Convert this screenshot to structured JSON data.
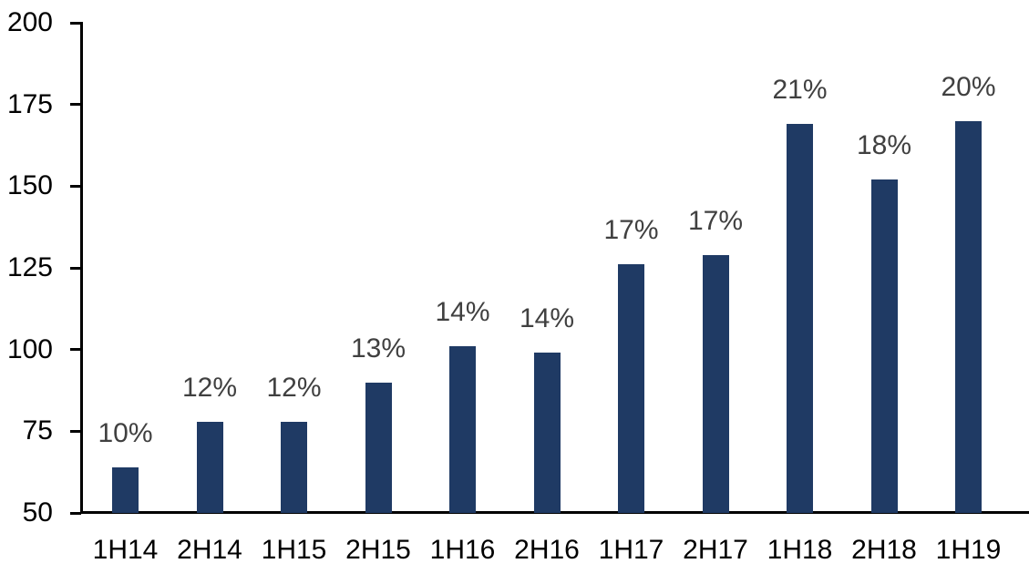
{
  "chart_data": {
    "type": "bar",
    "title": "",
    "xlabel": "",
    "ylabel": "",
    "categories": [
      "1H14",
      "2H14",
      "1H15",
      "2H15",
      "1H16",
      "2H16",
      "1H17",
      "2H17",
      "1H18",
      "2H18",
      "1H19"
    ],
    "values": [
      64,
      78,
      78,
      90,
      101,
      99,
      126,
      129,
      169,
      152,
      170
    ],
    "bar_labels": [
      "10%",
      "12%",
      "12%",
      "13%",
      "14%",
      "14%",
      "17%",
      "17%",
      "21%",
      "18%",
      "20%"
    ],
    "ylim": [
      50,
      200
    ],
    "yticks": [
      50,
      75,
      100,
      125,
      150,
      175,
      200
    ],
    "grid": false,
    "legend_position": "none",
    "colors": {
      "bar_fill": "#1f3a64",
      "data_label_text": "#404040",
      "axis_text": "#000000",
      "axis_line": "#000000",
      "background": "#ffffff"
    }
  }
}
